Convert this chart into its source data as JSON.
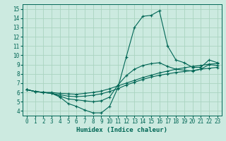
{
  "xlabel": "Humidex (Indice chaleur)",
  "bg_color": "#cceae0",
  "grid_color": "#aad4c0",
  "line_color": "#006655",
  "xlim": [
    -0.5,
    23.5
  ],
  "ylim": [
    3.5,
    15.5
  ],
  "xticks": [
    0,
    1,
    2,
    3,
    4,
    5,
    6,
    7,
    8,
    9,
    10,
    11,
    12,
    13,
    14,
    15,
    16,
    17,
    18,
    19,
    20,
    21,
    22,
    23
  ],
  "yticks": [
    4,
    5,
    6,
    7,
    8,
    9,
    10,
    11,
    12,
    13,
    14,
    15
  ],
  "lines": [
    {
      "x": [
        0,
        1,
        2,
        3,
        4,
        5,
        6,
        7,
        8,
        9,
        10,
        11,
        12,
        13,
        14,
        15,
        16,
        17,
        18,
        19,
        20,
        21,
        22,
        23
      ],
      "y": [
        6.3,
        6.1,
        6.0,
        5.9,
        5.5,
        4.8,
        4.5,
        4.1,
        3.8,
        3.8,
        4.5,
        6.5,
        9.8,
        13.0,
        14.2,
        14.3,
        14.8,
        11.0,
        9.5,
        9.2,
        8.7,
        8.7,
        9.5,
        9.2
      ]
    },
    {
      "x": [
        0,
        1,
        2,
        3,
        4,
        5,
        6,
        7,
        8,
        9,
        10,
        11,
        12,
        13,
        14,
        15,
        16,
        17,
        18,
        19,
        20,
        21,
        22,
        23
      ],
      "y": [
        6.3,
        6.1,
        6.0,
        6.0,
        5.9,
        5.85,
        5.8,
        5.9,
        6.0,
        6.15,
        6.4,
        6.7,
        7.0,
        7.3,
        7.6,
        7.85,
        8.1,
        8.3,
        8.5,
        8.65,
        8.8,
        8.9,
        9.05,
        9.1
      ]
    },
    {
      "x": [
        0,
        1,
        2,
        3,
        4,
        5,
        6,
        7,
        8,
        9,
        10,
        11,
        12,
        13,
        14,
        15,
        16,
        17,
        18,
        19,
        20,
        21,
        22,
        23
      ],
      "y": [
        6.3,
        6.1,
        6.0,
        5.9,
        5.75,
        5.6,
        5.55,
        5.6,
        5.7,
        5.85,
        6.1,
        6.4,
        6.8,
        7.1,
        7.4,
        7.65,
        7.85,
        8.0,
        8.15,
        8.25,
        8.35,
        8.5,
        8.6,
        8.7
      ]
    },
    {
      "x": [
        0,
        1,
        2,
        3,
        4,
        5,
        6,
        7,
        8,
        9,
        10,
        11,
        12,
        13,
        14,
        15,
        16,
        17,
        18,
        19,
        20,
        21,
        22,
        23
      ],
      "y": [
        6.3,
        6.1,
        6.0,
        5.9,
        5.6,
        5.3,
        5.2,
        5.1,
        5.0,
        5.1,
        5.5,
        6.8,
        7.8,
        8.5,
        8.9,
        9.1,
        9.2,
        8.8,
        8.5,
        8.4,
        8.3,
        8.5,
        9.0,
        8.9
      ]
    }
  ]
}
